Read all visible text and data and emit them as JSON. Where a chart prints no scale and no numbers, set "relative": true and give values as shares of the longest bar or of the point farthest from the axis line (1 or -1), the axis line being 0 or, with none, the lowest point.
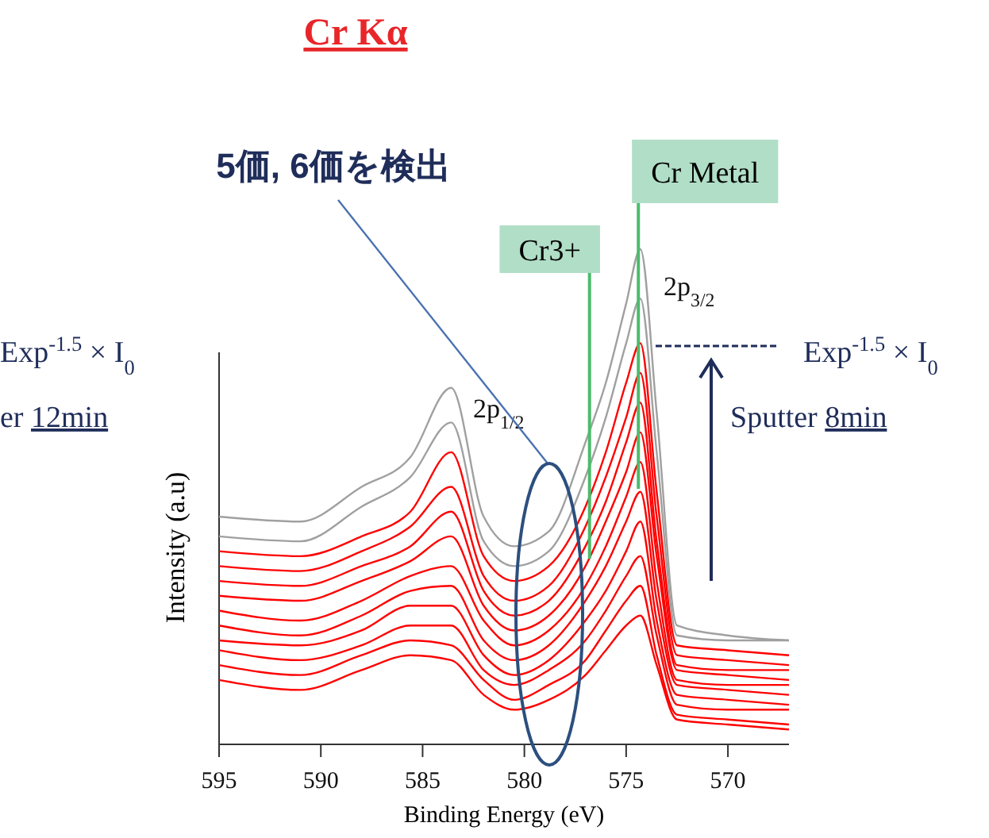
{
  "chart_data": {
    "type": "line",
    "title": "Cr Kα",
    "xlabel": "Binding Energy (eV)",
    "ylabel": "Intensity (a.u)",
    "relative": true,
    "x": [
      595,
      591,
      588,
      585.6,
      583.6,
      582,
      580.5,
      578.8,
      577,
      576,
      575,
      574.3,
      573.5,
      572.5,
      570,
      567
    ],
    "xlim": [
      595,
      567
    ],
    "xticks": [
      595,
      590,
      585,
      580,
      575,
      570
    ],
    "marker": "none",
    "line_style": "solid",
    "series": [
      {
        "color": "#a0a0a0",
        "values": [
          0.46,
          0.45,
          0.52,
          0.58,
          0.72,
          0.46,
          0.4,
          0.43,
          0.61,
          0.73,
          0.89,
          1,
          0.67,
          0.24,
          0.22,
          0.21
        ]
      },
      {
        "color": "#a0a0a0",
        "values": [
          0.42,
          0.41,
          0.48,
          0.54,
          0.65,
          0.41,
          0.36,
          0.39,
          0.54,
          0.66,
          0.81,
          0.9,
          0.59,
          0.22,
          0.21,
          0.21
        ]
      },
      {
        "color": "#ff0000",
        "values": [
          0.39,
          0.38,
          0.42,
          0.47,
          0.59,
          0.38,
          0.33,
          0.36,
          0.48,
          0.59,
          0.73,
          0.81,
          0.51,
          0.2,
          0.19,
          0.18
        ]
      },
      {
        "color": "#ff0000",
        "values": [
          0.36,
          0.35,
          0.39,
          0.44,
          0.52,
          0.34,
          0.29,
          0.32,
          0.44,
          0.54,
          0.66,
          0.75,
          0.46,
          0.18,
          0.17,
          0.16
        ]
      },
      {
        "color": "#ff0000",
        "values": [
          0.33,
          0.32,
          0.36,
          0.4,
          0.47,
          0.31,
          0.26,
          0.29,
          0.4,
          0.49,
          0.61,
          0.69,
          0.41,
          0.16,
          0.15,
          0.15
        ]
      },
      {
        "color": "#ff0000",
        "values": [
          0.3,
          0.29,
          0.33,
          0.37,
          0.42,
          0.28,
          0.23,
          0.26,
          0.36,
          0.45,
          0.55,
          0.63,
          0.38,
          0.15,
          0.14,
          0.13
        ]
      },
      {
        "color": "#ff0000",
        "values": [
          0.27,
          0.25,
          0.29,
          0.34,
          0.36,
          0.25,
          0.2,
          0.23,
          0.32,
          0.4,
          0.5,
          0.57,
          0.33,
          0.13,
          0.12,
          0.12
        ]
      },
      {
        "color": "#ff0000",
        "values": [
          0.24,
          0.22,
          0.26,
          0.31,
          0.32,
          0.21,
          0.17,
          0.2,
          0.29,
          0.36,
          0.45,
          0.51,
          0.29,
          0.12,
          0.11,
          0.1
        ]
      },
      {
        "color": "#ff0000",
        "values": [
          0.21,
          0.2,
          0.23,
          0.28,
          0.28,
          0.18,
          0.14,
          0.17,
          0.25,
          0.31,
          0.39,
          0.45,
          0.25,
          0.1,
          0.09,
          0.08
        ]
      },
      {
        "color": "#ff0000",
        "values": [
          0.19,
          0.17,
          0.2,
          0.24,
          0.24,
          0.15,
          0.12,
          0.15,
          0.21,
          0.27,
          0.34,
          0.38,
          0.22,
          0.08,
          0.07,
          0.07
        ]
      },
      {
        "color": "#ff0000",
        "values": [
          0.16,
          0.14,
          0.18,
          0.21,
          0.2,
          0.13,
          0.09,
          0.12,
          0.17,
          0.23,
          0.29,
          0.32,
          0.18,
          0.06,
          0.05,
          0.04
        ]
      },
      {
        "color": "#ff0000",
        "values": [
          0.13,
          0.11,
          0.15,
          0.18,
          0.17,
          0.1,
          0.07,
          0.09,
          0.14,
          0.19,
          0.24,
          0.26,
          0.16,
          0.05,
          0.04,
          0.03
        ]
      }
    ],
    "ref_lines": [
      {
        "axis": "x",
        "value": 576.8,
        "label": "Cr3+",
        "color": "#4cbb6c"
      },
      {
        "axis": "x",
        "value": 574.4,
        "label": "Cr Metal",
        "color": "#4cbb6c"
      }
    ],
    "annotations": [
      "5価, 6価を検出",
      "2p$_{1/2}$",
      "2p$_{3/2}$",
      "Exp$^{-1.5}$ × I$_{0}$",
      "Sputter 8min",
      "Exp$^{-1.5}$ × I$_{0}$",
      "er 12min"
    ]
  }
}
